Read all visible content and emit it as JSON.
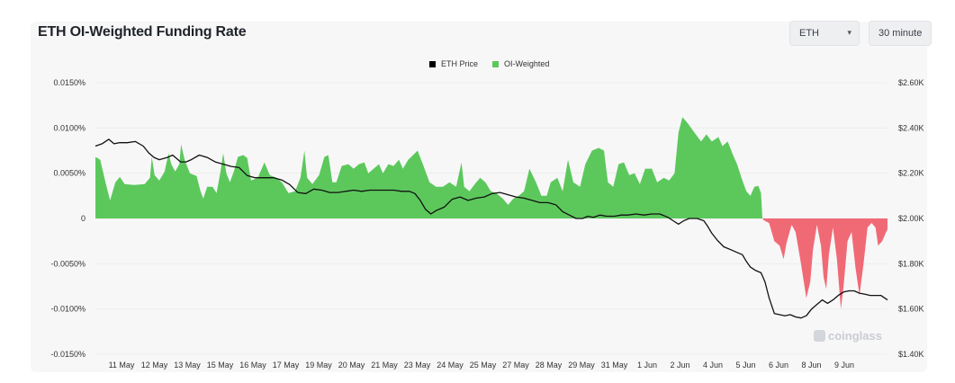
{
  "header": {
    "title": "ETH OI-Weighted Funding Rate",
    "asset_select": "ETH",
    "interval_select": "30 minute"
  },
  "watermark": "coinglass",
  "chart_data": {
    "type": "area",
    "title": "ETH OI-Weighted Funding Rate",
    "legend": [
      {
        "name": "ETH Price",
        "color": "#000000"
      },
      {
        "name": "OI-Weighted",
        "color": "#5cc85c"
      }
    ],
    "legend_position": "top-center",
    "grid": true,
    "positive_color": "#5cc85c",
    "negative_color": "#f06a76",
    "x_ticks": [
      "11 May",
      "12 May",
      "13 May",
      "15 May",
      "16 May",
      "17 May",
      "19 May",
      "20 May",
      "21 May",
      "23 May",
      "24 May",
      "25 May",
      "27 May",
      "28 May",
      "29 May",
      "31 May",
      "1 Jun",
      "2 Jun",
      "4 Jun",
      "5 Jun",
      "6 Jun",
      "8 Jun",
      "9 Jun"
    ],
    "y_left_ticks": [
      "0.0150%",
      "0.0100%",
      "0.0050%",
      "0",
      "-0.0050%",
      "-0.0100%",
      "-0.0150%"
    ],
    "y_left_range": [
      -0.015,
      0.015
    ],
    "y_right_ticks": [
      "$2.60K",
      "$2.40K",
      "$2.20K",
      "$2.00K",
      "$1.80K",
      "$1.60K",
      "$1.40K"
    ],
    "y_right_range": [
      1400,
      2600
    ],
    "x_range": [
      10.0,
      39.75
    ],
    "x_day_origin_note": "days counted from 1 May (32 = 1 Jun)",
    "series": [
      {
        "name": "OI-Weighted",
        "unit": "%",
        "points": [
          [
            10.0,
            0.0068
          ],
          [
            10.18,
            0.0065
          ],
          [
            10.38,
            0.004
          ],
          [
            10.55,
            0.002
          ],
          [
            10.75,
            0.004
          ],
          [
            10.92,
            0.0046
          ],
          [
            11.1,
            0.0038
          ],
          [
            11.45,
            0.0037
          ],
          [
            11.85,
            0.0038
          ],
          [
            12.05,
            0.0045
          ],
          [
            12.12,
            0.0068
          ],
          [
            12.22,
            0.0048
          ],
          [
            12.4,
            0.0042
          ],
          [
            12.6,
            0.0052
          ],
          [
            12.75,
            0.0072
          ],
          [
            12.85,
            0.006
          ],
          [
            13.0,
            0.0052
          ],
          [
            13.15,
            0.006
          ],
          [
            13.22,
            0.0082
          ],
          [
            13.35,
            0.0065
          ],
          [
            13.55,
            0.005
          ],
          [
            13.8,
            0.0047
          ],
          [
            13.95,
            0.003
          ],
          [
            14.05,
            0.0022
          ],
          [
            14.2,
            0.0035
          ],
          [
            14.4,
            0.0035
          ],
          [
            14.55,
            0.0028
          ],
          [
            14.7,
            0.0052
          ],
          [
            14.8,
            0.0072
          ],
          [
            14.92,
            0.005
          ],
          [
            15.05,
            0.004
          ],
          [
            15.2,
            0.0052
          ],
          [
            15.35,
            0.0068
          ],
          [
            15.55,
            0.007
          ],
          [
            15.7,
            0.0067
          ],
          [
            15.85,
            0.0042
          ],
          [
            16.1,
            0.0045
          ],
          [
            16.35,
            0.0062
          ],
          [
            16.55,
            0.0048
          ],
          [
            16.8,
            0.0045
          ],
          [
            17.0,
            0.004
          ],
          [
            17.25,
            0.0028
          ],
          [
            17.5,
            0.003
          ],
          [
            17.7,
            0.0045
          ],
          [
            17.85,
            0.0075
          ],
          [
            17.95,
            0.0045
          ],
          [
            18.15,
            0.0038
          ],
          [
            18.4,
            0.0048
          ],
          [
            18.6,
            0.0068
          ],
          [
            18.75,
            0.007
          ],
          [
            18.9,
            0.004
          ],
          [
            19.05,
            0.004
          ],
          [
            19.25,
            0.0058
          ],
          [
            19.5,
            0.006
          ],
          [
            19.7,
            0.0055
          ],
          [
            19.9,
            0.006
          ],
          [
            20.1,
            0.0062
          ],
          [
            20.25,
            0.005
          ],
          [
            20.45,
            0.0055
          ],
          [
            20.65,
            0.006
          ],
          [
            20.8,
            0.005
          ],
          [
            21.0,
            0.006
          ],
          [
            21.2,
            0.0058
          ],
          [
            21.4,
            0.0065
          ],
          [
            21.55,
            0.0055
          ],
          [
            21.75,
            0.0065
          ],
          [
            22.0,
            0.0072
          ],
          [
            22.1,
            0.0075
          ],
          [
            22.3,
            0.006
          ],
          [
            22.55,
            0.004
          ],
          [
            22.8,
            0.0035
          ],
          [
            23.05,
            0.0035
          ],
          [
            23.3,
            0.004
          ],
          [
            23.55,
            0.0035
          ],
          [
            23.75,
            0.0062
          ],
          [
            23.85,
            0.0035
          ],
          [
            24.05,
            0.003
          ],
          [
            24.25,
            0.0038
          ],
          [
            24.45,
            0.0045
          ],
          [
            24.65,
            0.004
          ],
          [
            24.85,
            0.003
          ],
          [
            25.05,
            0.0028
          ],
          [
            25.3,
            0.0022
          ],
          [
            25.5,
            0.0015
          ],
          [
            25.7,
            0.0022
          ],
          [
            25.9,
            0.0025
          ],
          [
            26.1,
            0.003
          ],
          [
            26.3,
            0.0055
          ],
          [
            26.55,
            0.004
          ],
          [
            26.75,
            0.0025
          ],
          [
            26.95,
            0.0025
          ],
          [
            27.1,
            0.004
          ],
          [
            27.35,
            0.0045
          ],
          [
            27.55,
            0.003
          ],
          [
            27.75,
            0.0065
          ],
          [
            27.95,
            0.004
          ],
          [
            28.2,
            0.0035
          ],
          [
            28.4,
            0.006
          ],
          [
            28.65,
            0.0075
          ],
          [
            28.9,
            0.0078
          ],
          [
            29.1,
            0.0075
          ],
          [
            29.25,
            0.004
          ],
          [
            29.45,
            0.0035
          ],
          [
            29.65,
            0.006
          ],
          [
            29.85,
            0.0062
          ],
          [
            30.05,
            0.0048
          ],
          [
            30.25,
            0.005
          ],
          [
            30.45,
            0.0038
          ],
          [
            30.65,
            0.0055
          ],
          [
            30.9,
            0.0055
          ],
          [
            31.1,
            0.004
          ],
          [
            31.35,
            0.0045
          ],
          [
            31.55,
            0.0042
          ],
          [
            31.75,
            0.005
          ],
          [
            31.9,
            0.0095
          ],
          [
            32.05,
            0.0112
          ],
          [
            32.25,
            0.0105
          ],
          [
            32.5,
            0.0095
          ],
          [
            32.75,
            0.0085
          ],
          [
            32.95,
            0.0093
          ],
          [
            33.15,
            0.0085
          ],
          [
            33.4,
            0.009
          ],
          [
            33.55,
            0.008
          ],
          [
            33.75,
            0.0085
          ],
          [
            33.95,
            0.007
          ],
          [
            34.1,
            0.006
          ],
          [
            34.3,
            0.0042
          ],
          [
            34.45,
            0.003
          ],
          [
            34.6,
            0.0025
          ],
          [
            34.75,
            0.0035
          ],
          [
            34.9,
            0.0036
          ],
          [
            35.0,
            0.0028
          ],
          [
            35.05,
            0.0
          ],
          [
            35.1,
            -0.0002
          ],
          [
            35.3,
            -0.0005
          ],
          [
            35.5,
            -0.0025
          ],
          [
            35.7,
            -0.003
          ],
          [
            35.85,
            -0.0045
          ],
          [
            35.95,
            -0.0028
          ],
          [
            36.15,
            -0.0007
          ],
          [
            36.3,
            -0.0015
          ],
          [
            36.5,
            -0.005
          ],
          [
            36.7,
            -0.0088
          ],
          [
            36.85,
            -0.007
          ],
          [
            36.95,
            -0.0035
          ],
          [
            37.1,
            -0.0007
          ],
          [
            37.25,
            -0.003
          ],
          [
            37.35,
            -0.0065
          ],
          [
            37.45,
            -0.0078
          ],
          [
            37.55,
            -0.004
          ],
          [
            37.7,
            -0.001
          ],
          [
            37.85,
            -0.0045
          ],
          [
            38.0,
            -0.01
          ],
          [
            38.1,
            -0.0075
          ],
          [
            38.25,
            -0.0025
          ],
          [
            38.4,
            -0.0015
          ],
          [
            38.55,
            -0.0055
          ],
          [
            38.7,
            -0.0085
          ],
          [
            38.85,
            -0.005
          ],
          [
            39.0,
            -0.001
          ],
          [
            39.15,
            -0.0005
          ],
          [
            39.3,
            -0.001
          ],
          [
            39.4,
            -0.003
          ],
          [
            39.55,
            -0.0025
          ],
          [
            39.7,
            -0.0015
          ],
          [
            39.75,
            -0.0012
          ]
        ]
      },
      {
        "name": "ETH Price",
        "unit": "$",
        "points": [
          [
            10.0,
            2320
          ],
          [
            10.25,
            2330
          ],
          [
            10.5,
            2350
          ],
          [
            10.7,
            2330
          ],
          [
            10.9,
            2335
          ],
          [
            11.2,
            2335
          ],
          [
            11.5,
            2340
          ],
          [
            11.8,
            2320
          ],
          [
            12.0,
            2290
          ],
          [
            12.2,
            2270
          ],
          [
            12.4,
            2260
          ],
          [
            12.7,
            2270
          ],
          [
            12.9,
            2280
          ],
          [
            13.2,
            2250
          ],
          [
            13.4,
            2250
          ],
          [
            13.6,
            2260
          ],
          [
            13.9,
            2280
          ],
          [
            14.2,
            2270
          ],
          [
            14.5,
            2250
          ],
          [
            14.8,
            2240
          ],
          [
            15.1,
            2230
          ],
          [
            15.4,
            2225
          ],
          [
            15.7,
            2190
          ],
          [
            16.0,
            2180
          ],
          [
            16.4,
            2180
          ],
          [
            16.7,
            2180
          ],
          [
            17.0,
            2170
          ],
          [
            17.3,
            2150
          ],
          [
            17.6,
            2115
          ],
          [
            17.9,
            2110
          ],
          [
            18.2,
            2130
          ],
          [
            18.5,
            2125
          ],
          [
            18.8,
            2115
          ],
          [
            19.1,
            2115
          ],
          [
            19.4,
            2120
          ],
          [
            19.7,
            2125
          ],
          [
            20.0,
            2120
          ],
          [
            20.3,
            2125
          ],
          [
            20.6,
            2125
          ],
          [
            20.9,
            2125
          ],
          [
            21.2,
            2125
          ],
          [
            21.5,
            2120
          ],
          [
            21.8,
            2120
          ],
          [
            22.0,
            2110
          ],
          [
            22.2,
            2080
          ],
          [
            22.4,
            2040
          ],
          [
            22.6,
            2020
          ],
          [
            22.8,
            2035
          ],
          [
            23.1,
            2050
          ],
          [
            23.4,
            2085
          ],
          [
            23.7,
            2095
          ],
          [
            24.0,
            2080
          ],
          [
            24.3,
            2090
          ],
          [
            24.6,
            2095
          ],
          [
            24.9,
            2110
          ],
          [
            25.2,
            2115
          ],
          [
            25.5,
            2105
          ],
          [
            25.8,
            2095
          ],
          [
            26.1,
            2090
          ],
          [
            26.4,
            2080
          ],
          [
            26.7,
            2070
          ],
          [
            27.0,
            2070
          ],
          [
            27.3,
            2060
          ],
          [
            27.55,
            2030
          ],
          [
            27.8,
            2015
          ],
          [
            28.05,
            2000
          ],
          [
            28.3,
            2000
          ],
          [
            28.5,
            2010
          ],
          [
            28.7,
            2005
          ],
          [
            28.95,
            2015
          ],
          [
            29.2,
            2010
          ],
          [
            29.5,
            2010
          ],
          [
            29.75,
            2015
          ],
          [
            30.0,
            2015
          ],
          [
            30.3,
            2020
          ],
          [
            30.6,
            2015
          ],
          [
            30.9,
            2020
          ],
          [
            31.2,
            2020
          ],
          [
            31.5,
            2005
          ],
          [
            31.7,
            1990
          ],
          [
            31.9,
            1975
          ],
          [
            32.1,
            1990
          ],
          [
            32.3,
            2000
          ],
          [
            32.6,
            2000
          ],
          [
            32.85,
            1990
          ],
          [
            33.0,
            1965
          ],
          [
            33.15,
            1935
          ],
          [
            33.35,
            1905
          ],
          [
            33.6,
            1875
          ],
          [
            33.9,
            1860
          ],
          [
            34.1,
            1850
          ],
          [
            34.3,
            1840
          ],
          [
            34.45,
            1810
          ],
          [
            34.6,
            1785
          ],
          [
            34.8,
            1770
          ],
          [
            35.0,
            1760
          ],
          [
            35.15,
            1720
          ],
          [
            35.3,
            1650
          ],
          [
            35.5,
            1580
          ],
          [
            35.7,
            1575
          ],
          [
            35.9,
            1570
          ],
          [
            36.1,
            1575
          ],
          [
            36.3,
            1565
          ],
          [
            36.5,
            1560
          ],
          [
            36.7,
            1570
          ],
          [
            36.9,
            1600
          ],
          [
            37.1,
            1620
          ],
          [
            37.3,
            1640
          ],
          [
            37.5,
            1625
          ],
          [
            37.7,
            1640
          ],
          [
            37.9,
            1660
          ],
          [
            38.1,
            1675
          ],
          [
            38.3,
            1680
          ],
          [
            38.5,
            1680
          ],
          [
            38.7,
            1670
          ],
          [
            38.9,
            1665
          ],
          [
            39.1,
            1660
          ],
          [
            39.3,
            1660
          ],
          [
            39.5,
            1660
          ],
          [
            39.75,
            1640
          ]
        ]
      }
    ]
  }
}
